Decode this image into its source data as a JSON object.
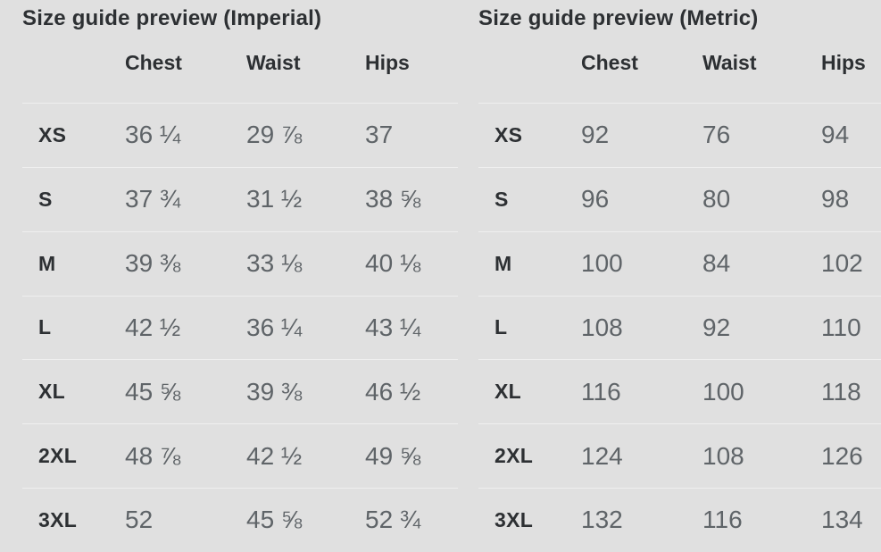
{
  "colors": {
    "background": "#e0e0e0",
    "heading": "#2d3033",
    "value": "#5f6468",
    "divider": "#efefef"
  },
  "imperial": {
    "title": "Size guide preview (Imperial)",
    "columns": [
      "Chest",
      "Waist",
      "Hips"
    ],
    "rows": [
      {
        "size": "XS",
        "chest": "36 ¼",
        "waist": "29 ⅞",
        "hips": "37"
      },
      {
        "size": "S",
        "chest": "37 ¾",
        "waist": "31 ½",
        "hips": "38 ⅝"
      },
      {
        "size": "M",
        "chest": "39 ⅜",
        "waist": "33 ⅛",
        "hips": "40 ⅛"
      },
      {
        "size": "L",
        "chest": "42 ½",
        "waist": "36 ¼",
        "hips": "43 ¼"
      },
      {
        "size": "XL",
        "chest": "45 ⅝",
        "waist": "39 ⅜",
        "hips": "46 ½"
      },
      {
        "size": "2XL",
        "chest": "48 ⅞",
        "waist": "42 ½",
        "hips": "49 ⅝"
      },
      {
        "size": "3XL",
        "chest": "52",
        "waist": "45 ⅝",
        "hips": "52 ¾"
      }
    ]
  },
  "metric": {
    "title": "Size guide preview (Metric)",
    "columns": [
      "Chest",
      "Waist",
      "Hips"
    ],
    "rows": [
      {
        "size": "XS",
        "chest": "92",
        "waist": "76",
        "hips": "94"
      },
      {
        "size": "S",
        "chest": "96",
        "waist": "80",
        "hips": "98"
      },
      {
        "size": "M",
        "chest": "100",
        "waist": "84",
        "hips": "102"
      },
      {
        "size": "L",
        "chest": "108",
        "waist": "92",
        "hips": "110"
      },
      {
        "size": "XL",
        "chest": "116",
        "waist": "100",
        "hips": "118"
      },
      {
        "size": "2XL",
        "chest": "124",
        "waist": "108",
        "hips": "126"
      },
      {
        "size": "3XL",
        "chest": "132",
        "waist": "116",
        "hips": "134"
      }
    ]
  }
}
